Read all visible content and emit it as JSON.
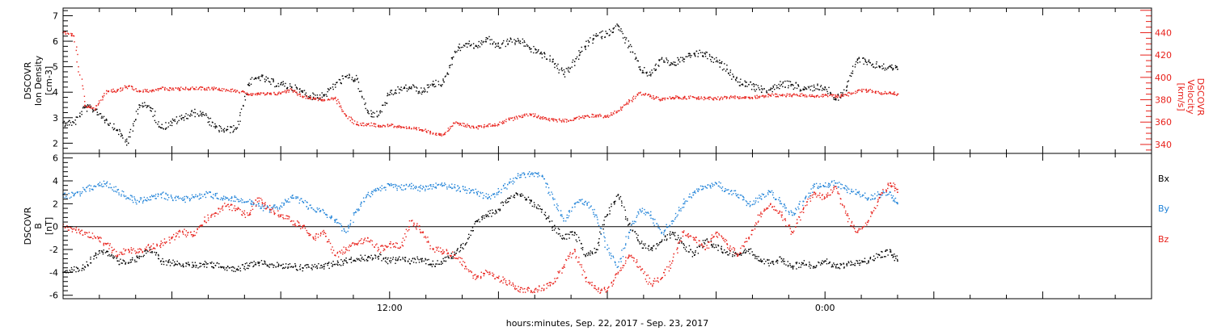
{
  "xlabel": "hours:minutes, Sep. 22, 2017 - Sep. 23, 2017",
  "x_ticks": [
    {
      "hour": 12,
      "label": "12:00"
    },
    {
      "hour": 24,
      "label": "0:00"
    }
  ],
  "colors": {
    "black": "#000000",
    "red": "#e8201a",
    "blue": "#1f82d8"
  },
  "chart_data": [
    {
      "type": "scatter",
      "panel": "top",
      "x_unit": "hours since 0:00 Sep. 22, 2017",
      "xlim": [
        3,
        33
      ],
      "left_axis": {
        "label_lines": [
          "DSCOVR",
          "Ion Density",
          "[cm-3]"
        ],
        "ylim": [
          1.6,
          7.3
        ],
        "ticks": [
          2,
          3,
          4,
          5,
          6,
          7
        ]
      },
      "right_axis": {
        "label_lines": [
          "DSCOVR",
          "Velocity",
          "[km/s]"
        ],
        "ylim": [
          332,
          462
        ],
        "ticks": [
          340,
          360,
          380,
          400,
          420,
          440
        ]
      },
      "series": [
        {
          "name": "Ion Density",
          "axis": "left",
          "color": "#000000",
          "x": [
            3.0,
            3.3,
            3.6,
            3.9,
            4.2,
            4.5,
            4.8,
            5.1,
            5.4,
            5.7,
            6.0,
            6.3,
            6.6,
            6.9,
            7.2,
            7.5,
            7.8,
            8.1,
            8.4,
            8.7,
            9.0,
            9.3,
            9.6,
            9.9,
            10.2,
            10.5,
            10.8,
            11.1,
            11.4,
            11.7,
            12.0,
            12.3,
            12.6,
            12.9,
            13.2,
            13.5,
            13.8,
            14.1,
            14.4,
            14.7,
            15.0,
            15.3,
            15.6,
            15.9,
            16.2,
            16.5,
            16.8,
            17.1,
            17.4,
            17.7,
            18.0,
            18.3,
            18.6,
            18.9,
            19.2,
            19.5,
            19.8,
            20.1,
            20.4,
            20.7,
            21.0,
            21.3,
            21.6,
            21.9,
            22.2,
            22.5,
            22.8,
            23.1,
            23.4,
            23.7,
            24.0,
            24.3,
            24.6,
            24.9,
            25.2,
            25.5,
            25.8,
            26.0
          ],
          "y": [
            2.8,
            2.8,
            3.4,
            3.3,
            2.9,
            2.5,
            2.0,
            3.5,
            3.4,
            2.6,
            2.8,
            3.0,
            3.2,
            3.1,
            2.6,
            2.5,
            2.6,
            4.3,
            4.6,
            4.4,
            4.3,
            4.2,
            4.0,
            3.8,
            3.9,
            4.3,
            4.6,
            4.5,
            3.2,
            3.1,
            3.9,
            4.1,
            4.2,
            4.0,
            4.3,
            4.4,
            5.6,
            5.9,
            5.8,
            6.1,
            5.8,
            6.0,
            6.0,
            5.7,
            5.5,
            5.2,
            4.7,
            5.2,
            5.8,
            6.2,
            6.3,
            6.6,
            5.8,
            4.9,
            4.7,
            5.3,
            5.1,
            5.3,
            5.5,
            5.5,
            5.2,
            4.9,
            4.4,
            4.3,
            4.1,
            4.1,
            4.3,
            4.3,
            4.1,
            4.2,
            4.2,
            3.7,
            4.2,
            5.3,
            5.2,
            5.0,
            5.0,
            4.9
          ]
        },
        {
          "name": "Velocity",
          "axis": "right",
          "color": "#e8201a",
          "x": [
            3.0,
            3.3,
            3.6,
            3.9,
            4.2,
            4.5,
            4.8,
            5.1,
            5.4,
            5.7,
            6.0,
            6.3,
            6.6,
            6.9,
            7.2,
            7.5,
            7.8,
            8.1,
            8.4,
            8.7,
            9.0,
            9.3,
            9.6,
            9.9,
            10.2,
            10.5,
            10.8,
            11.1,
            11.4,
            11.7,
            12.0,
            12.3,
            12.6,
            12.9,
            13.2,
            13.5,
            13.8,
            14.1,
            14.4,
            14.7,
            15.0,
            15.3,
            15.6,
            15.9,
            16.2,
            16.5,
            16.8,
            17.1,
            17.4,
            17.7,
            18.0,
            18.3,
            18.6,
            18.9,
            19.2,
            19.5,
            19.8,
            20.1,
            20.4,
            20.7,
            21.0,
            21.3,
            21.6,
            21.9,
            22.2,
            22.5,
            22.8,
            23.1,
            23.4,
            23.7,
            24.0,
            24.3,
            24.6,
            24.9,
            25.2,
            25.5,
            25.8,
            26.0
          ],
          "y": [
            440,
            437,
            375,
            372,
            388,
            388,
            392,
            388,
            388,
            390,
            389,
            390,
            390,
            390,
            390,
            389,
            388,
            385,
            385,
            385,
            386,
            389,
            383,
            381,
            380,
            381,
            366,
            358,
            358,
            357,
            357,
            356,
            354,
            353,
            350,
            349,
            359,
            357,
            355,
            357,
            358,
            362,
            365,
            367,
            364,
            362,
            361,
            363,
            365,
            366,
            365,
            370,
            378,
            386,
            383,
            380,
            382,
            382,
            382,
            381,
            381,
            382,
            382,
            382,
            383,
            384,
            384,
            384,
            384,
            383,
            384,
            383,
            384,
            388,
            388,
            386,
            386,
            385
          ]
        }
      ]
    },
    {
      "type": "scatter",
      "panel": "bottom",
      "x_unit": "hours since 0:00 Sep. 22, 2017",
      "xlim": [
        3,
        33
      ],
      "left_axis": {
        "label_lines": [
          "DSCOVR",
          "B",
          "[nT]"
        ],
        "ylim": [
          -6.3,
          6.4
        ],
        "ticks": [
          -6,
          -4,
          -2,
          0,
          2,
          4,
          6
        ]
      },
      "zero_line": true,
      "legend": [
        "Bx",
        "By",
        "Bz"
      ],
      "legend_placement": "right",
      "series": [
        {
          "name": "Bx",
          "color": "#000000",
          "x": [
            3.0,
            3.3,
            3.6,
            3.9,
            4.2,
            4.5,
            4.8,
            5.1,
            5.4,
            5.7,
            6.0,
            6.3,
            6.6,
            6.9,
            7.2,
            7.5,
            7.8,
            8.1,
            8.4,
            8.7,
            9.0,
            9.3,
            9.6,
            9.9,
            10.2,
            10.5,
            10.8,
            11.1,
            11.4,
            11.7,
            12.0,
            12.3,
            12.6,
            12.9,
            13.2,
            13.5,
            13.8,
            14.1,
            14.4,
            14.7,
            15.0,
            15.3,
            15.6,
            15.9,
            16.2,
            16.5,
            16.8,
            17.1,
            17.4,
            17.7,
            18.0,
            18.3,
            18.6,
            18.9,
            19.2,
            19.5,
            19.8,
            20.1,
            20.4,
            20.7,
            21.0,
            21.3,
            21.6,
            21.9,
            22.2,
            22.5,
            22.8,
            23.1,
            23.4,
            23.7,
            24.0,
            24.3,
            24.6,
            24.9,
            25.2,
            25.5,
            25.8,
            26.0
          ],
          "y": [
            -4.0,
            -3.8,
            -3.5,
            -2.5,
            -2.2,
            -3.0,
            -3.2,
            -2.6,
            -2.0,
            -3.0,
            -3.2,
            -3.4,
            -3.4,
            -3.3,
            -3.4,
            -3.6,
            -3.7,
            -3.4,
            -3.2,
            -3.3,
            -3.4,
            -3.5,
            -3.6,
            -3.5,
            -3.5,
            -3.3,
            -3.0,
            -2.8,
            -2.7,
            -2.6,
            -3.0,
            -2.9,
            -3.0,
            -2.8,
            -3.3,
            -3.0,
            -2.4,
            -1.5,
            0.5,
            1.0,
            1.5,
            2.5,
            2.8,
            2.2,
            1.5,
            0.0,
            -1.0,
            -0.5,
            -2.5,
            -2.0,
            1.0,
            2.8,
            0.2,
            -1.5,
            -2.0,
            -1.3,
            -0.5,
            -1.5,
            -2.5,
            -1.2,
            -1.8,
            -2.2,
            -2.5,
            -2.0,
            -3.0,
            -3.2,
            -2.8,
            -3.5,
            -3.2,
            -3.5,
            -3.0,
            -3.5,
            -3.3,
            -3.2,
            -3.0,
            -2.5,
            -2.2,
            -3.0
          ]
        },
        {
          "name": "By",
          "color": "#1f82d8",
          "x": [
            3.0,
            3.3,
            3.6,
            3.9,
            4.2,
            4.5,
            4.8,
            5.1,
            5.4,
            5.7,
            6.0,
            6.3,
            6.6,
            6.9,
            7.2,
            7.5,
            7.8,
            8.1,
            8.4,
            8.7,
            9.0,
            9.3,
            9.6,
            9.9,
            10.2,
            10.5,
            10.8,
            11.1,
            11.4,
            11.7,
            12.0,
            12.3,
            12.6,
            12.9,
            13.2,
            13.5,
            13.8,
            14.1,
            14.4,
            14.7,
            15.0,
            15.3,
            15.6,
            15.9,
            16.2,
            16.5,
            16.8,
            17.1,
            17.4,
            17.7,
            18.0,
            18.3,
            18.6,
            18.9,
            19.2,
            19.5,
            19.8,
            20.1,
            20.4,
            20.7,
            21.0,
            21.3,
            21.6,
            21.9,
            22.2,
            22.5,
            22.8,
            23.1,
            23.4,
            23.7,
            24.0,
            24.3,
            24.6,
            24.9,
            25.2,
            25.5,
            25.8,
            26.0
          ],
          "y": [
            2.8,
            2.7,
            3.2,
            3.5,
            3.8,
            3.2,
            2.5,
            2.2,
            2.6,
            2.8,
            2.5,
            2.3,
            2.6,
            2.8,
            2.7,
            2.5,
            2.4,
            2.2,
            1.8,
            1.5,
            1.8,
            2.5,
            2.2,
            1.5,
            1.2,
            0.5,
            -0.5,
            1.5,
            2.8,
            3.2,
            3.6,
            3.4,
            3.5,
            3.3,
            3.5,
            3.6,
            3.4,
            3.2,
            3.0,
            2.5,
            3.0,
            3.8,
            4.5,
            4.6,
            4.4,
            2.5,
            0.5,
            2.0,
            2.2,
            1.0,
            -2.0,
            -3.5,
            -0.5,
            1.5,
            1.0,
            -0.5,
            0.5,
            2.0,
            3.0,
            3.5,
            3.8,
            3.2,
            2.8,
            2.0,
            2.5,
            3.0,
            2.0,
            1.0,
            2.2,
            3.5,
            3.5,
            3.8,
            3.2,
            3.0,
            2.5,
            2.8,
            3.0,
            2.0
          ]
        },
        {
          "name": "Bz",
          "color": "#e8201a",
          "x": [
            3.0,
            3.3,
            3.6,
            3.9,
            4.2,
            4.5,
            4.8,
            5.1,
            5.4,
            5.7,
            6.0,
            6.3,
            6.6,
            6.9,
            7.2,
            7.5,
            7.8,
            8.1,
            8.4,
            8.7,
            9.0,
            9.3,
            9.6,
            9.9,
            10.2,
            10.5,
            10.8,
            11.1,
            11.4,
            11.7,
            12.0,
            12.3,
            12.6,
            12.9,
            13.2,
            13.5,
            13.8,
            14.1,
            14.4,
            14.7,
            15.0,
            15.3,
            15.6,
            15.9,
            16.2,
            16.5,
            16.8,
            17.1,
            17.4,
            17.7,
            18.0,
            18.3,
            18.6,
            18.9,
            19.2,
            19.5,
            19.8,
            20.1,
            20.4,
            20.7,
            21.0,
            21.3,
            21.6,
            21.9,
            22.2,
            22.5,
            22.8,
            23.1,
            23.4,
            23.7,
            24.0,
            24.3,
            24.6,
            24.9,
            25.2,
            25.5,
            25.8,
            26.0
          ],
          "y": [
            0.0,
            -0.2,
            -0.5,
            -1.0,
            -1.5,
            -2.5,
            -2.0,
            -2.2,
            -1.8,
            -1.5,
            -1.0,
            -0.5,
            -0.8,
            0.5,
            1.2,
            1.8,
            1.5,
            1.0,
            2.5,
            1.5,
            1.0,
            0.5,
            0.0,
            -1.0,
            -0.5,
            -2.5,
            -2.0,
            -1.5,
            -1.0,
            -2.0,
            -1.5,
            -1.8,
            0.5,
            -0.5,
            -2.0,
            -2.2,
            -2.5,
            -3.5,
            -4.5,
            -4.0,
            -4.5,
            -5.0,
            -5.5,
            -5.6,
            -5.4,
            -5.0,
            -3.5,
            -2.0,
            -4.5,
            -5.5,
            -5.6,
            -4.0,
            -2.5,
            -3.5,
            -5.0,
            -4.5,
            -3.0,
            -0.5,
            -1.0,
            -2.0,
            -0.5,
            -1.5,
            -2.5,
            -1.0,
            1.0,
            2.0,
            1.0,
            -0.5,
            1.5,
            3.0,
            2.5,
            3.5,
            1.0,
            -0.5,
            0.5,
            2.5,
            3.8,
            3.0
          ]
        }
      ]
    }
  ]
}
